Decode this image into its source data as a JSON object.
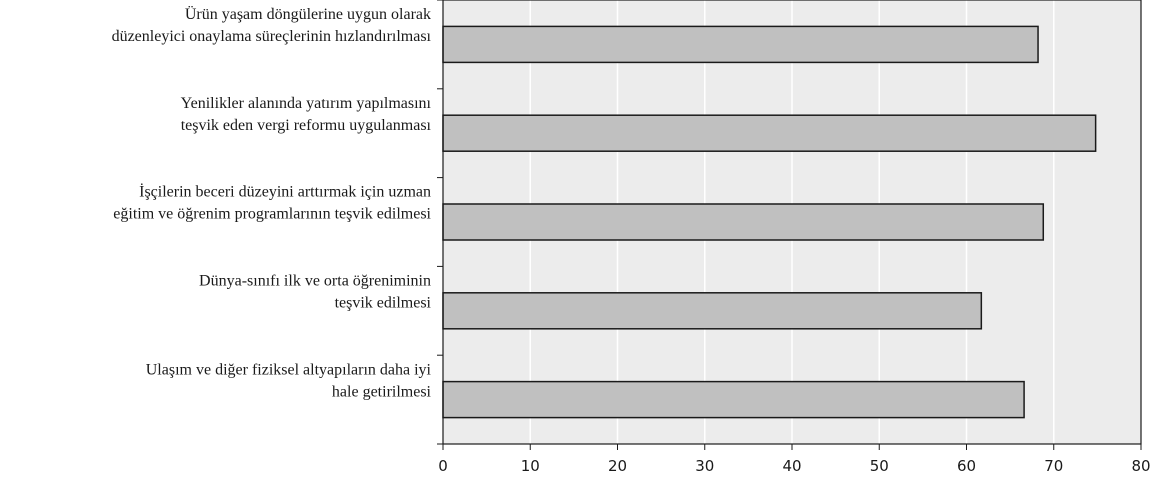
{
  "chart_data": {
    "type": "bar",
    "orientation": "horizontal",
    "title": "",
    "xlabel": "",
    "ylabel": "",
    "categories": [
      [
        "Ürün yaşam döngülerine uygun olarak",
        "düzenleyici onaylama süreçlerinin hızlandırılması"
      ],
      [
        "Yenilikler alanında yatırım yapılmasını",
        "teşvik eden vergi reformu uygulanması"
      ],
      [
        "İşçilerin beceri düzeyini arttırmak için uzman",
        "eğitim ve öğrenim programlarının teşvik edilmesi"
      ],
      [
        "Dünya-sınıfı ilk ve orta öğreniminin",
        "teşvik edilmesi"
      ],
      [
        "Ulaşım ve diğer fiziksel altyapıların daha iyi",
        "hale getirilmesi"
      ]
    ],
    "values": [
      68.2,
      74.8,
      68.8,
      61.7,
      66.6
    ],
    "xlim": [
      0,
      80
    ],
    "xticks": [
      "0",
      "10",
      "20",
      "30",
      "40",
      "50",
      "60",
      "70",
      "80"
    ],
    "grid": true,
    "colors": {
      "bar_fill": "#c0c0c0",
      "bar_stroke": "#1a1a1a",
      "plot_background": "#ececec",
      "gridline": "#ffffff",
      "axis": "#1a1a1a"
    }
  }
}
